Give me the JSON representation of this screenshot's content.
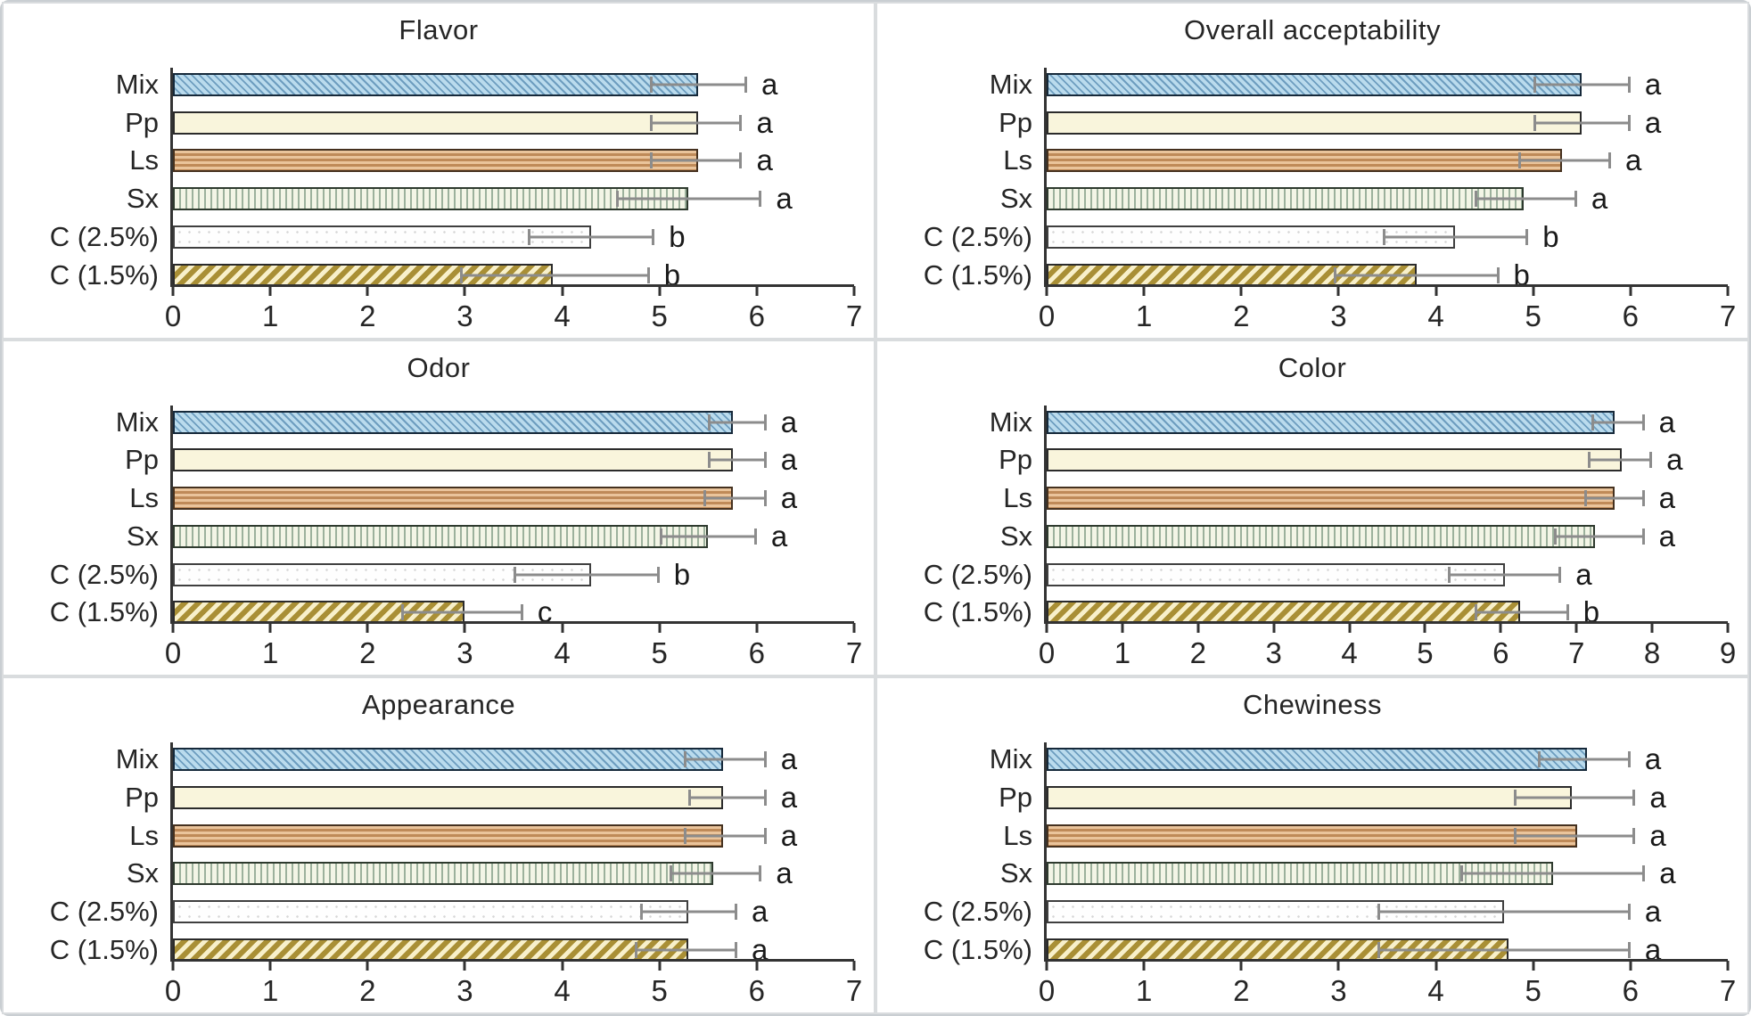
{
  "figure": {
    "background": "#ffffff",
    "outer_border_color": "#c9ced2",
    "panel_border_color": "#d9dcde",
    "axis_color": "#333333",
    "text_color": "#262626",
    "error_bar_color": "#8c8c8c",
    "letter_color": "#1a1a1a"
  },
  "categories": [
    "Mix",
    "Pp",
    "Ls",
    "Sx",
    "C (2.5%)",
    "C (1.5%)"
  ],
  "bar_styles": [
    {
      "category": "Mix",
      "pattern": "diagonal-hatch-fine",
      "fill": "#badbed",
      "stroke": "#6d9dbf",
      "border": "#16293a"
    },
    {
      "category": "Pp",
      "pattern": "solid",
      "fill": "#f9f5dc",
      "stroke": "#f9f5dc",
      "border": "#2b2b2b"
    },
    {
      "category": "Ls",
      "pattern": "horizontal-lines",
      "fill": "#eac49b",
      "stroke": "#bf8a58",
      "border": "#45311f"
    },
    {
      "category": "Sx",
      "pattern": "vertical-lines",
      "fill": "#f3f5e6",
      "stroke": "#9cb19c",
      "border": "#2e3a2e"
    },
    {
      "category": "C (2.5%)",
      "pattern": "fine-dots",
      "fill": "#fefefe",
      "stroke": "#d7d7d7",
      "border": "#3f3f3f"
    },
    {
      "category": "C (1.5%)",
      "pattern": "diagonal-stripes",
      "fill": "#f8f0ca",
      "stroke": "#a98f35",
      "border": "#2b2b2b"
    }
  ],
  "chart_data": [
    {
      "type": "bar",
      "orientation": "horizontal",
      "title": "Flavor",
      "xlim": [
        0,
        7
      ],
      "xticks": [
        0,
        1,
        2,
        3,
        4,
        5,
        6,
        7
      ],
      "grid": false,
      "legend": false,
      "categories": [
        "Mix",
        "Pp",
        "Ls",
        "Sx",
        "C (2.5%)",
        "C (1.5%)"
      ],
      "values": [
        5.4,
        5.4,
        5.4,
        5.3,
        4.3,
        3.9
      ],
      "error_low": [
        4.9,
        4.9,
        4.9,
        4.55,
        3.65,
        2.95
      ],
      "error_high": [
        5.9,
        5.85,
        5.85,
        6.05,
        4.95,
        4.9
      ],
      "letters": [
        "a",
        "a",
        "a",
        "a",
        "b",
        "b"
      ]
    },
    {
      "type": "bar",
      "orientation": "horizontal",
      "title": "Overall acceptability",
      "xlim": [
        0,
        7
      ],
      "xticks": [
        0,
        1,
        2,
        3,
        4,
        5,
        6,
        7
      ],
      "grid": false,
      "legend": false,
      "categories": [
        "Mix",
        "Pp",
        "Ls",
        "Sx",
        "C (2.5%)",
        "C (1.5%)"
      ],
      "values": [
        5.5,
        5.5,
        5.3,
        4.9,
        4.2,
        3.8
      ],
      "error_low": [
        5.0,
        5.0,
        4.85,
        4.4,
        3.45,
        2.95
      ],
      "error_high": [
        6.0,
        6.0,
        5.8,
        5.45,
        4.95,
        4.65
      ],
      "letters": [
        "a",
        "a",
        "a",
        "a",
        "b",
        "b"
      ]
    },
    {
      "type": "bar",
      "orientation": "horizontal",
      "title": "Odor",
      "xlim": [
        0,
        7
      ],
      "xticks": [
        0,
        1,
        2,
        3,
        4,
        5,
        6,
        7
      ],
      "grid": false,
      "legend": false,
      "categories": [
        "Mix",
        "Pp",
        "Ls",
        "Sx",
        "C (2.5%)",
        "C (1.5%)"
      ],
      "values": [
        5.75,
        5.75,
        5.75,
        5.5,
        4.3,
        3.0
      ],
      "error_low": [
        5.5,
        5.5,
        5.45,
        5.0,
        3.5,
        2.35
      ],
      "error_high": [
        6.1,
        6.1,
        6.1,
        6.0,
        5.0,
        3.6
      ],
      "letters": [
        "a",
        "a",
        "a",
        "a",
        "b",
        "c"
      ]
    },
    {
      "type": "bar",
      "orientation": "horizontal",
      "title": "Color",
      "xlim": [
        0,
        9
      ],
      "xticks": [
        0,
        1,
        2,
        3,
        4,
        5,
        6,
        7,
        8,
        9
      ],
      "grid": false,
      "legend": false,
      "categories": [
        "Mix",
        "Pp",
        "Ls",
        "Sx",
        "C (2.5%)",
        "C (1.5%)"
      ],
      "values": [
        7.5,
        7.6,
        7.5,
        7.25,
        6.05,
        6.25
      ],
      "error_low": [
        7.2,
        7.15,
        7.1,
        6.7,
        5.3,
        5.65
      ],
      "error_high": [
        7.9,
        8.0,
        7.9,
        7.9,
        6.8,
        6.9
      ],
      "letters": [
        "a",
        "a",
        "a",
        "a",
        "a",
        "b"
      ]
    },
    {
      "type": "bar",
      "orientation": "horizontal",
      "title": "Appearance",
      "xlim": [
        0,
        7
      ],
      "xticks": [
        0,
        1,
        2,
        3,
        4,
        5,
        6,
        7
      ],
      "grid": false,
      "legend": false,
      "categories": [
        "Mix",
        "Pp",
        "Ls",
        "Sx",
        "C (2.5%)",
        "C (1.5%)"
      ],
      "values": [
        5.65,
        5.65,
        5.65,
        5.55,
        5.3,
        5.3
      ],
      "error_low": [
        5.25,
        5.3,
        5.25,
        5.1,
        4.8,
        4.75
      ],
      "error_high": [
        6.1,
        6.1,
        6.1,
        6.05,
        5.8,
        5.8
      ],
      "letters": [
        "a",
        "a",
        "a",
        "a",
        "a",
        "a"
      ]
    },
    {
      "type": "bar",
      "orientation": "horizontal",
      "title": "Chewiness",
      "xlim": [
        0,
        7
      ],
      "xticks": [
        0,
        1,
        2,
        3,
        4,
        5,
        6,
        7
      ],
      "grid": false,
      "legend": false,
      "categories": [
        "Mix",
        "Pp",
        "Ls",
        "Sx",
        "C (2.5%)",
        "C (1.5%)"
      ],
      "values": [
        5.55,
        5.4,
        5.45,
        5.2,
        4.7,
        4.75
      ],
      "error_low": [
        5.05,
        4.8,
        4.8,
        4.25,
        3.4,
        3.4
      ],
      "error_high": [
        6.0,
        6.05,
        6.05,
        6.15,
        6.0,
        6.0
      ],
      "letters": [
        "a",
        "a",
        "a",
        "a",
        "a",
        "a"
      ]
    }
  ]
}
